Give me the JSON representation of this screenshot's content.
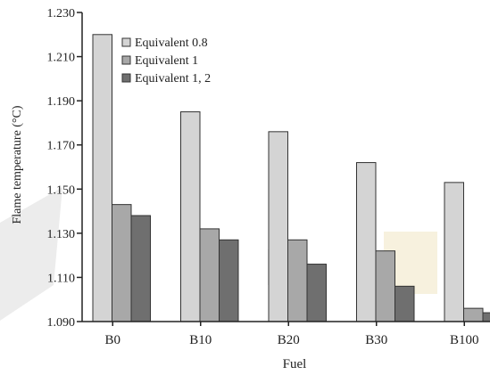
{
  "chart_data": {
    "type": "bar",
    "title": "",
    "xlabel": "Fuel",
    "ylabel": "Flame temperature (°C)",
    "ylim": [
      1.09,
      1.23
    ],
    "yticks": [
      "1.090",
      "1.110",
      "1.130",
      "1.150",
      "1.170",
      "1.190",
      "1.210",
      "1.230"
    ],
    "yticks_values": [
      1.09,
      1.11,
      1.13,
      1.15,
      1.17,
      1.19,
      1.21,
      1.23
    ],
    "categories": [
      "B0",
      "B10",
      "B20",
      "B30",
      "B100"
    ],
    "series": [
      {
        "name": "Equivalent 0.8",
        "color": "#d4d4d4",
        "values": [
          1.22,
          1.185,
          1.176,
          1.162,
          1.153
        ]
      },
      {
        "name": "Equivalent 1",
        "color": "#a8a8a8",
        "values": [
          1.143,
          1.132,
          1.127,
          1.122,
          1.096
        ]
      },
      {
        "name": "Equivalent 1, 2",
        "color": "#6f6f6f",
        "values": [
          1.138,
          1.127,
          1.116,
          1.106,
          1.094
        ]
      }
    ],
    "legend_position": "top-left",
    "grid": false
  }
}
